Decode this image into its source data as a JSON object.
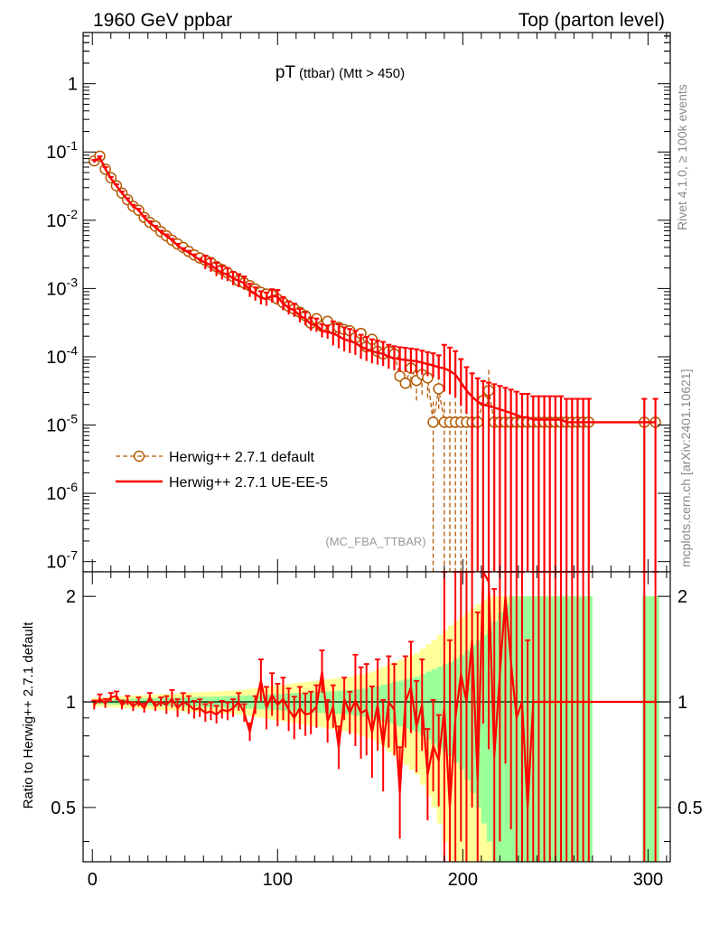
{
  "header": {
    "left": "1960 GeV ppbar",
    "right": "Top (parton level)"
  },
  "side": {
    "rivet": "Rivet 4.1.0, ≥ 100k events",
    "mcplots": "mcplots.cern.ch [arXiv:2401.10621]"
  },
  "colors": {
    "default": "#b35900",
    "ue": "#ff0000",
    "band_yellow": "#ffff99",
    "band_green": "#99ff99"
  },
  "chart_data": [
    {
      "type": "line",
      "title_main": "pT",
      "title_sub": "(ttbar) (Mtt > 450)",
      "analysis": "(MC_FBA_TTBAR)",
      "yscale": "log",
      "xlim": [
        -5,
        312
      ],
      "ylim_exp": [
        -7.15,
        0.75
      ],
      "ytick_labels": [
        "10^-7",
        "10^-6",
        "10^-5",
        "10^-4",
        "10^-3",
        "10^-2",
        "10^-1",
        "1"
      ],
      "legend": [
        "Herwig++ 2.7.1 default",
        "Herwig++ 2.7.1 UE-EE-5"
      ],
      "series": [
        {
          "name": "Herwig++ 2.7.1 default",
          "x": [
            1,
            4,
            7,
            10,
            13,
            16,
            19,
            22,
            25,
            28,
            31,
            34,
            37,
            40,
            43,
            46,
            49,
            52,
            55,
            58,
            61,
            64,
            67,
            70,
            73,
            76,
            79,
            82,
            85,
            88,
            91,
            94,
            97,
            100,
            103,
            106,
            109,
            112,
            115,
            118,
            121,
            124,
            127,
            130,
            133,
            136,
            139,
            142,
            145,
            148,
            151,
            154,
            157,
            160,
            163,
            166,
            169,
            172,
            175,
            178,
            181,
            184,
            187,
            190,
            193,
            196,
            199,
            202,
            205,
            208,
            211,
            214,
            217,
            220,
            223,
            226,
            229,
            232,
            235,
            238,
            241,
            244,
            247,
            250,
            253,
            256,
            259,
            262,
            265,
            268,
            298,
            304
          ],
          "y": [
            0.074,
            0.087,
            0.056,
            0.042,
            0.032,
            0.025,
            0.02,
            0.016,
            0.014,
            0.011,
            0.0093,
            0.0082,
            0.0068,
            0.0059,
            0.0051,
            0.0045,
            0.004,
            0.0035,
            0.0031,
            0.0028,
            0.0026,
            0.0024,
            0.0021,
            0.0019,
            0.0017,
            0.0015,
            0.0013,
            0.0012,
            0.0011,
            0.00098,
            0.00088,
            0.00083,
            0.0008,
            0.0007,
            0.00062,
            0.00055,
            0.0005,
            0.00045,
            0.0004,
            0.00031,
            0.00036,
            0.00028,
            0.00033,
            0.00026,
            0.00027,
            0.00025,
            0.00024,
            0.00019,
            0.00022,
            0.00014,
            0.00018,
            0.00012,
            0.00011,
            0.00012,
            0.00011,
            5.2e-05,
            4.1e-05,
            6.8e-05,
            4.5e-05,
            5.5e-05,
            4.9e-05,
            1.1e-05,
            3.4e-05,
            1.1e-05,
            1.1e-05,
            1.1e-05,
            1.1e-05,
            1.1e-05,
            1.1e-05,
            1.1e-05,
            2.3e-05,
            3.2e-05,
            1.1e-05,
            1.1e-05,
            1.1e-05,
            1.1e-05,
            1.1e-05,
            1.1e-05,
            1.1e-05,
            1.1e-05,
            1.1e-05,
            1.1e-05,
            1.1e-05,
            1.1e-05,
            1.1e-05,
            1.1e-05,
            1.1e-05,
            1.1e-05,
            1.1e-05,
            1.1e-05,
            1.1e-05,
            1.1e-05
          ]
        },
        {
          "name": "Herwig++ 2.7.1 UE-EE-5",
          "x": [
            1,
            4,
            7,
            10,
            13,
            16,
            19,
            22,
            25,
            28,
            31,
            34,
            37,
            40,
            43,
            46,
            49,
            52,
            55,
            58,
            61,
            64,
            67,
            70,
            73,
            76,
            79,
            82,
            85,
            88,
            91,
            94,
            97,
            100,
            103,
            106,
            109,
            112,
            115,
            118,
            121,
            124,
            127,
            130,
            133,
            136,
            139,
            142,
            145,
            148,
            151,
            154,
            157,
            160,
            163,
            166,
            169,
            172,
            175,
            178,
            181,
            184,
            187,
            190,
            193,
            196,
            199,
            202,
            205,
            208,
            211,
            214,
            217,
            220,
            223,
            226,
            229,
            232,
            235,
            238,
            241,
            244,
            247,
            250,
            253,
            256,
            259,
            262,
            265,
            268,
            298,
            304
          ],
          "y": [
            0.073,
            0.082,
            0.057,
            0.041,
            0.032,
            0.025,
            0.02,
            0.016,
            0.014,
            0.011,
            0.0092,
            0.0079,
            0.0067,
            0.0059,
            0.0051,
            0.0043,
            0.0037,
            0.0034,
            0.003,
            0.0026,
            0.0024,
            0.0022,
            0.0019,
            0.0017,
            0.0016,
            0.0014,
            0.0013,
            0.0012,
            0.00094,
            0.00083,
            0.00073,
            0.0007,
            0.00078,
            0.00076,
            0.0006,
            0.00052,
            0.00048,
            0.0004,
            0.00036,
            0.0003,
            0.00029,
            0.00024,
            0.00023,
            0.00022,
            0.0002,
            0.00018,
            0.00017,
            0.00016,
            0.00014,
            0.00013,
            0.00012,
            0.000115,
            0.00011,
            0.0001,
            9.5e-05,
            9.2e-05,
            9e-05,
            8.8e-05,
            8.6e-05,
            8.2e-05,
            7.8e-05,
            7.5e-05,
            7e-05,
            6.8e-05,
            6.2e-05,
            5.5e-05,
            4.2e-05,
            3.2e-05,
            2.6e-05,
            2.2e-05,
            2e-05,
            1.9e-05,
            1.8e-05,
            1.7e-05,
            1.6e-05,
            1.5e-05,
            1.4e-05,
            1.3e-05,
            1.3e-05,
            1.2e-05,
            1.2e-05,
            1.2e-05,
            1.2e-05,
            1.2e-05,
            1.2e-05,
            1.1e-05,
            1.1e-05,
            1.1e-05,
            1.1e-05,
            1.1e-05,
            1.1e-05,
            1.1e-05
          ]
        }
      ]
    },
    {
      "type": "line",
      "ylabel": "Ratio to Herwig++ 2.7.1 default",
      "xlim": [
        -5,
        312
      ],
      "ylim": [
        0.35,
        2.35
      ],
      "yscale": "log",
      "yticks": [
        0.5,
        1,
        2
      ],
      "xticks": [
        0,
        100,
        200,
        300
      ],
      "band_edges": [
        0,
        3,
        6,
        9,
        12,
        15,
        18,
        21,
        24,
        27,
        30,
        33,
        36,
        39,
        42,
        45,
        48,
        51,
        54,
        57,
        60,
        63,
        66,
        69,
        72,
        75,
        78,
        81,
        84,
        87,
        90,
        93,
        96,
        99,
        102,
        105,
        108,
        111,
        114,
        117,
        120,
        123,
        126,
        129,
        132,
        135,
        138,
        141,
        144,
        147,
        150,
        153,
        156,
        159,
        162,
        165,
        168,
        171,
        174,
        177,
        180,
        183,
        186,
        189,
        192,
        195,
        198,
        201,
        204,
        207,
        210,
        213,
        216,
        219,
        222,
        225,
        228,
        231,
        234,
        237,
        240,
        243,
        246,
        249,
        252,
        255,
        258,
        261,
        264,
        267,
        270,
        273,
        276,
        279,
        282,
        285,
        288,
        291,
        294,
        297,
        300,
        303,
        306
      ],
      "band_green": [
        0.014,
        0.015,
        0.016,
        0.017,
        0.018,
        0.019,
        0.02,
        0.021,
        0.022,
        0.023,
        0.024,
        0.025,
        0.026,
        0.027,
        0.028,
        0.029,
        0.03,
        0.031,
        0.032,
        0.033,
        0.034,
        0.035,
        0.036,
        0.037,
        0.038,
        0.039,
        0.04,
        0.042,
        0.044,
        0.046,
        0.048,
        0.05,
        0.052,
        0.054,
        0.056,
        0.058,
        0.06,
        0.062,
        0.064,
        0.066,
        0.068,
        0.07,
        0.072,
        0.074,
        0.076,
        0.078,
        0.08,
        0.085,
        0.09,
        0.095,
        0.1,
        0.11,
        0.12,
        0.13,
        0.14,
        0.15,
        0.16,
        0.17,
        0.18,
        0.2,
        0.22,
        0.24,
        0.26,
        0.28,
        0.3,
        0.33,
        0.36,
        0.4,
        0.45,
        0.5,
        0.55,
        0.6,
        0.7,
        0.8,
        0.9,
        1.0,
        1.0,
        1.0,
        1.0,
        1.0,
        1.0,
        1.0,
        1.0,
        1.0,
        1.0,
        1.0,
        1.0,
        1.0,
        1.0,
        1.0,
        0,
        0,
        0,
        0,
        0,
        0,
        0,
        0,
        0,
        1.0,
        1.0,
        1.0
      ],
      "band_yellow": [
        0.028,
        0.03,
        0.032,
        0.034,
        0.036,
        0.038,
        0.04,
        0.042,
        0.044,
        0.046,
        0.048,
        0.05,
        0.052,
        0.054,
        0.056,
        0.058,
        0.06,
        0.062,
        0.064,
        0.066,
        0.068,
        0.07,
        0.072,
        0.074,
        0.076,
        0.078,
        0.08,
        0.085,
        0.09,
        0.095,
        0.1,
        0.105,
        0.11,
        0.115,
        0.12,
        0.125,
        0.13,
        0.135,
        0.14,
        0.145,
        0.15,
        0.155,
        0.16,
        0.165,
        0.17,
        0.175,
        0.18,
        0.19,
        0.2,
        0.21,
        0.22,
        0.24,
        0.26,
        0.28,
        0.3,
        0.32,
        0.34,
        0.36,
        0.38,
        0.42,
        0.46,
        0.5,
        0.55,
        0.6,
        0.65,
        0.7,
        0.75,
        0.8,
        0.85,
        0.9,
        0.95,
        1.0,
        1.0,
        1.0,
        1.0,
        1.0,
        1.0,
        1.0,
        1.0,
        1.0,
        1.0,
        1.0,
        1.0,
        1.0,
        1.0,
        1.0,
        1.0,
        1.0,
        1.0,
        1.0,
        0,
        0,
        0,
        0,
        0,
        0,
        0,
        0,
        0,
        1.0,
        1.0,
        1.0
      ],
      "series": [
        {
          "name": "UE-EE-5 / default",
          "x": [
            1,
            4,
            7,
            10,
            13,
            16,
            19,
            22,
            25,
            28,
            31,
            34,
            37,
            40,
            43,
            46,
            49,
            52,
            55,
            58,
            61,
            64,
            67,
            70,
            73,
            76,
            79,
            82,
            85,
            88,
            91,
            94,
            97,
            100,
            103,
            106,
            109,
            112,
            115,
            118,
            121,
            124,
            127,
            130,
            133,
            136,
            139,
            142,
            145,
            148,
            151,
            154,
            157,
            160,
            163,
            166,
            169,
            172,
            175,
            178,
            181,
            184,
            187,
            190,
            193,
            196,
            199,
            202,
            205,
            208,
            211,
            214,
            217,
            220,
            223,
            226,
            229,
            232,
            235,
            238,
            241,
            244,
            247,
            250,
            253,
            256,
            259,
            262,
            265,
            268,
            298,
            304
          ],
          "y": [
            0.98,
            1.02,
            0.99,
            1.03,
            1.04,
            0.98,
            1.01,
            0.97,
            1.0,
            0.96,
            1.03,
            0.97,
            1.0,
            0.98,
            1.02,
            0.96,
            1.0,
            0.98,
            0.95,
            0.96,
            0.93,
            0.94,
            0.92,
            0.95,
            0.94,
            0.96,
            1.0,
            0.93,
            0.82,
            0.98,
            1.15,
            0.96,
            1.05,
            0.98,
            1.02,
            0.95,
            0.9,
            0.96,
            0.92,
            0.93,
            0.97,
            1.22,
            0.88,
            0.97,
            0.74,
            1.02,
            0.93,
            1.01,
            0.93,
            0.95,
            0.82,
            0.98,
            0.75,
            1.0,
            0.95,
            0.55,
            1.0,
            1.1,
            0.85,
            0.98,
            0.62,
            0.75,
            0.68,
            0.96,
            0.5,
            0.9,
            1.2,
            1.0,
            1.5,
            0.6,
            2.6,
            2.2,
            0.7,
            1.2,
            2.0,
            1.3,
            0.9,
            1.0,
            0.5,
            1.0,
            1.0,
            1.0,
            1.0,
            1.0,
            1.0,
            1.0,
            1.0,
            1.0,
            1.0,
            1.0,
            1.0,
            1.0
          ]
        }
      ]
    }
  ]
}
